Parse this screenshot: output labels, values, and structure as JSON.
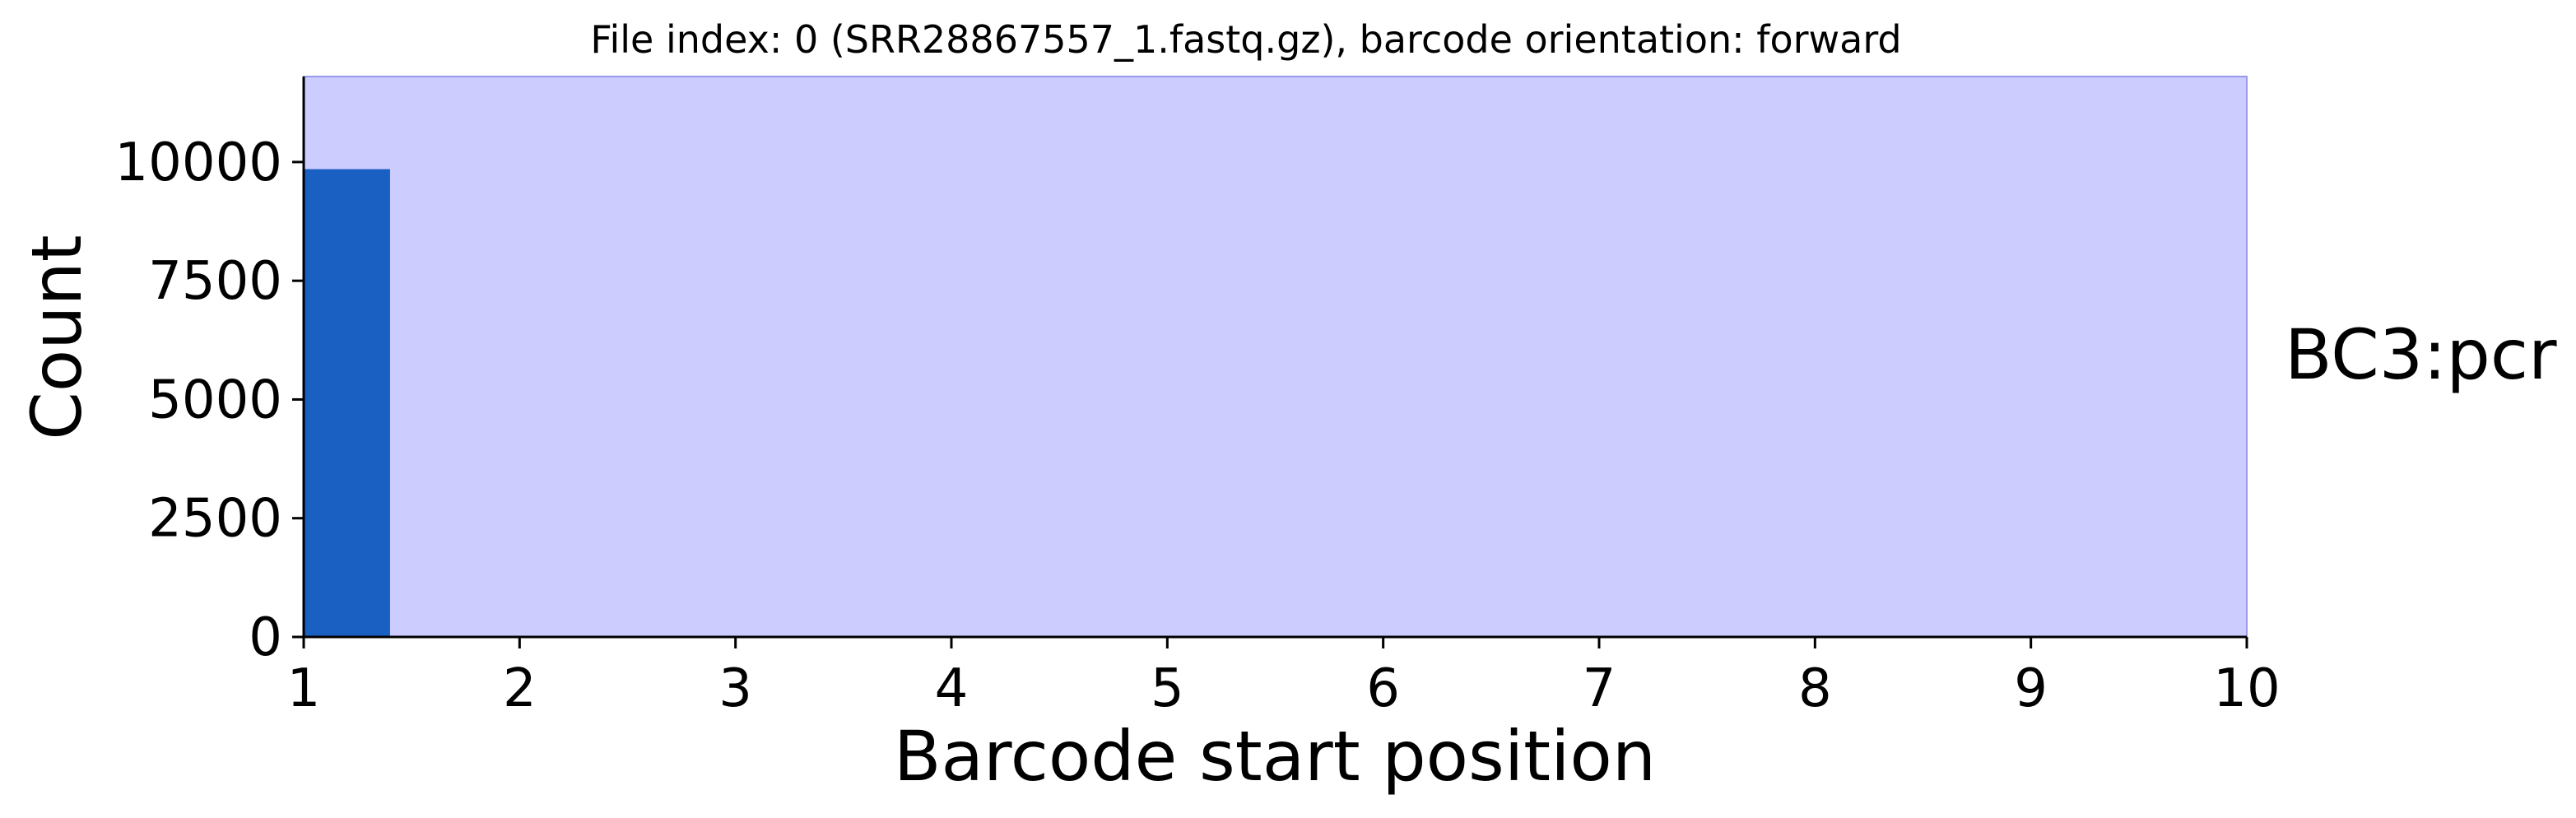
{
  "chart_data": {
    "type": "bar",
    "title": "File index: 0 (SRR28867557_1.fastq.gz), barcode orientation: forward",
    "xlabel": "Barcode start position",
    "ylabel": "Count",
    "side_label": "BC3:pcr",
    "xlim": [
      1,
      10
    ],
    "ylim": [
      0,
      11800
    ],
    "x_ticks": [
      "1",
      "2",
      "3",
      "4",
      "5",
      "6",
      "7",
      "8",
      "9",
      "10"
    ],
    "y_ticks": [
      "0",
      "2500",
      "5000",
      "7500",
      "10000"
    ],
    "bars": [
      {
        "x_start": 1,
        "x_end": 1.4,
        "value": 9850
      }
    ],
    "grid": false,
    "background_color": "#ccccff",
    "bar_color": "#1a5fc2"
  }
}
